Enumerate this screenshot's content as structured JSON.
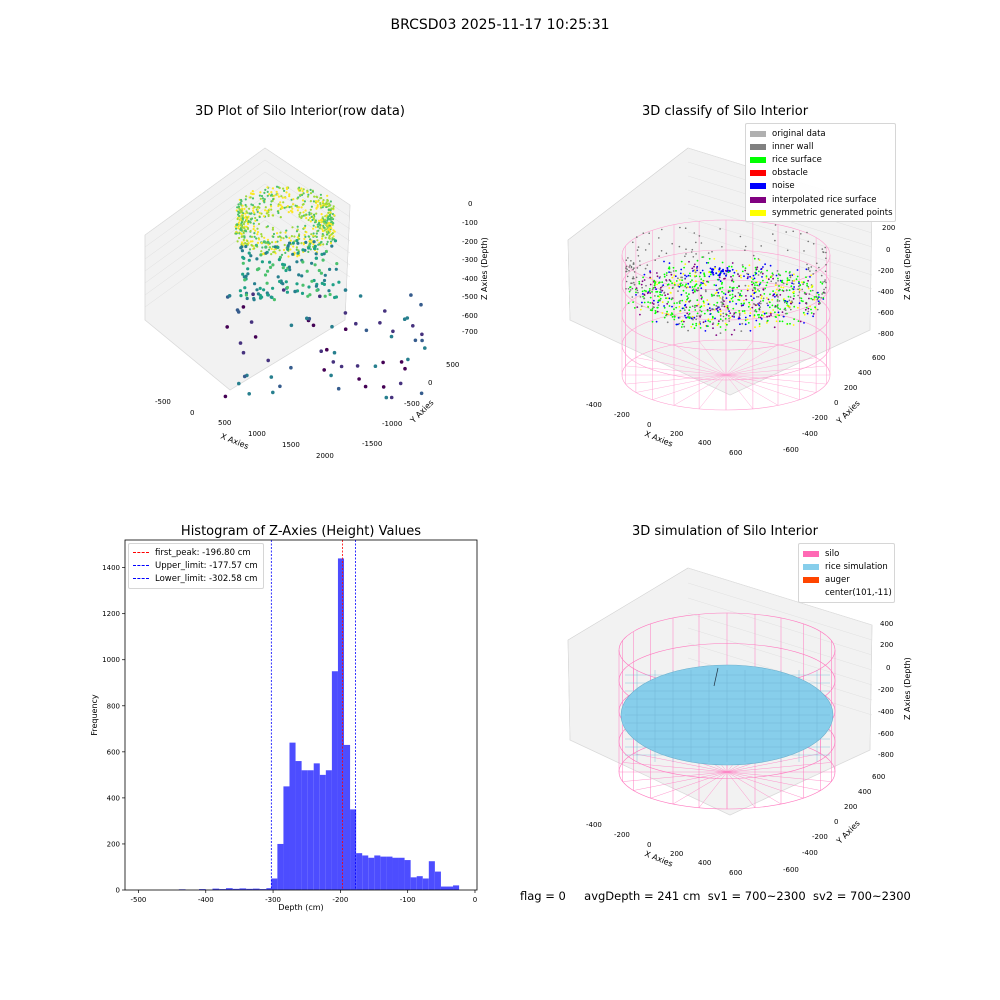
{
  "figure_title": "BRCSD03 2025-11-17 10:25:31",
  "footer": {
    "flag": "flag = 0",
    "avg_depth": "avgDepth = 241 cm",
    "sv1": "sv1 = 700~2300",
    "sv2": "sv2 = 700~2300"
  },
  "chart_data": [
    {
      "type": "scatter",
      "title": "3D Plot of Silo Interior(row data)",
      "xlabel": "X Axies",
      "ylabel": "Y Axies",
      "zlabel": "Z Axies (Depth)",
      "x_ticks": [
        "-500",
        "0",
        "500",
        "1000",
        "1500",
        "2000"
      ],
      "y_ticks": [
        "500",
        "0",
        "-500",
        "-1000",
        "-1500"
      ],
      "z_ticks": [
        "0",
        "-100",
        "-200",
        "-300",
        "-400",
        "-500",
        "-600",
        "-700"
      ],
      "colormap": "viridis"
    },
    {
      "type": "scatter",
      "title": "3D classify of Silo Interior",
      "xlabel": "X Axies",
      "ylabel": "Y Axies",
      "zlabel": "Z Axies (Depth)",
      "x_ticks": [
        "-400",
        "-200",
        "0",
        "200",
        "400",
        "600"
      ],
      "y_ticks": [
        "600",
        "400",
        "200",
        "0",
        "-200",
        "-400",
        "-600"
      ],
      "z_ticks": [
        "200",
        "0",
        "-200",
        "-400",
        "-600",
        "-800"
      ],
      "legend": [
        {
          "label": "original data",
          "color": "#b0b0b0"
        },
        {
          "label": "inner wall",
          "color": "#808080"
        },
        {
          "label": "rice surface",
          "color": "#00ff00"
        },
        {
          "label": "obstacle",
          "color": "#ff0000"
        },
        {
          "label": "noise",
          "color": "#0000ff"
        },
        {
          "label": "interpolated rice surface",
          "color": "#800080"
        },
        {
          "label": "symmetric generated points",
          "color": "#ffff00"
        }
      ]
    },
    {
      "type": "bar",
      "title": "Histogram of Z-Axies (Height) Values",
      "xlabel": "Depth (cm)",
      "ylabel": "Frequency",
      "xlim": [
        -520,
        3
      ],
      "ylim": [
        0,
        1520
      ],
      "x_ticks": [
        -500,
        -400,
        -300,
        -200,
        -100,
        0
      ],
      "y_ticks": [
        0,
        200,
        400,
        600,
        800,
        1000,
        1200,
        1400
      ],
      "bar_color": "#0000ff",
      "bins": [
        [
          -440,
          -430,
          3
        ],
        [
          -410,
          -400,
          4
        ],
        [
          -390,
          -380,
          6
        ],
        [
          -380,
          -370,
          4
        ],
        [
          -370,
          -360,
          8
        ],
        [
          -360,
          -350,
          5
        ],
        [
          -350,
          -340,
          7
        ],
        [
          -340,
          -330,
          5
        ],
        [
          -330,
          -320,
          6
        ],
        [
          -320,
          -310,
          4
        ],
        [
          -310,
          -302.6,
          8
        ],
        [
          -302.6,
          -293.6,
          50
        ],
        [
          -293.6,
          -284.6,
          200
        ],
        [
          -284.6,
          -275.6,
          450
        ],
        [
          -275.6,
          -266.6,
          640
        ],
        [
          -266.6,
          -257.6,
          560
        ],
        [
          -257.6,
          -248.6,
          520
        ],
        [
          -248.6,
          -239.6,
          520
        ],
        [
          -239.6,
          -230.6,
          550
        ],
        [
          -230.6,
          -221.6,
          500
        ],
        [
          -221.6,
          -212.6,
          520
        ],
        [
          -212.6,
          -203.6,
          950
        ],
        [
          -203.6,
          -194.6,
          1440
        ],
        [
          -194.6,
          -185.6,
          630
        ],
        [
          -185.6,
          -176.6,
          350
        ],
        [
          -176.6,
          -167.6,
          160
        ],
        [
          -167.6,
          -158.6,
          150
        ],
        [
          -158.6,
          -149.6,
          140
        ],
        [
          -149.6,
          -140.6,
          150
        ],
        [
          -140.6,
          -131.6,
          145
        ],
        [
          -131.6,
          -122.6,
          145
        ],
        [
          -122.6,
          -113.6,
          140
        ],
        [
          -113.6,
          -104.6,
          140
        ],
        [
          -104.6,
          -95.6,
          130
        ],
        [
          -95.6,
          -86.6,
          55
        ],
        [
          -86.6,
          -77.6,
          60
        ],
        [
          -77.6,
          -68.6,
          50
        ],
        [
          -68.6,
          -59.6,
          125
        ],
        [
          -59.6,
          -50.6,
          80
        ],
        [
          -50.6,
          -41.6,
          15
        ],
        [
          -41.6,
          -32.6,
          15
        ],
        [
          -32.6,
          -23.6,
          20
        ]
      ],
      "vlines": [
        {
          "x": -196.8,
          "color": "#ff0000",
          "label": "first_peak: -196.80 cm"
        },
        {
          "x": -177.57,
          "color": "#0000ff",
          "label": "Upper_limit: -177.57 cm"
        },
        {
          "x": -302.58,
          "color": "#0000ff",
          "label": "Lower_limit: -302.58 cm"
        }
      ]
    },
    {
      "type": "surface",
      "title": "3D simulation of Silo Interior",
      "xlabel": "X Axies",
      "ylabel": "Y Axies",
      "zlabel": "Z Axies (Depth)",
      "x_ticks": [
        "-400",
        "-200",
        "0",
        "200",
        "400",
        "600"
      ],
      "y_ticks": [
        "600",
        "400",
        "200",
        "0",
        "-200",
        "-400",
        "-600"
      ],
      "z_ticks": [
        "400",
        "200",
        "0",
        "-200",
        "-400",
        "-600",
        "-800"
      ],
      "legend": [
        {
          "label": "silo",
          "color": "#ff69b4"
        },
        {
          "label": "rice simulation",
          "color": "#87ceeb"
        },
        {
          "label": "auger",
          "color": "#ff4500"
        },
        {
          "label": "center(101,-11)",
          "color": ""
        }
      ]
    }
  ]
}
